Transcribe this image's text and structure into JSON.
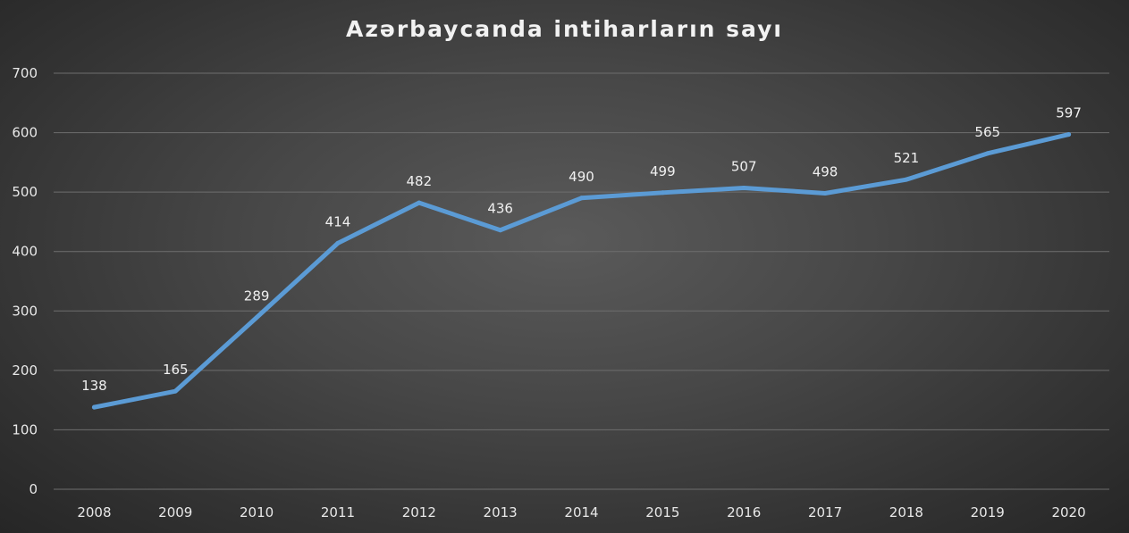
{
  "chart_data": {
    "type": "line",
    "title": "Azərbaycanda intiharların sayı",
    "xlabel": "",
    "ylabel": "",
    "x": [
      "2008",
      "2009",
      "2010",
      "2011",
      "2012",
      "2013",
      "2014",
      "2015",
      "2016",
      "2017",
      "2018",
      "2019",
      "2020"
    ],
    "series": [
      {
        "values": [
          138,
          165,
          289,
          414,
          482,
          436,
          490,
          499,
          507,
          498,
          521,
          565,
          597
        ],
        "color": "#5b9bd5"
      }
    ],
    "ylim": [
      0,
      700
    ],
    "yticks": [
      0,
      100,
      200,
      300,
      400,
      500,
      600,
      700
    ],
    "grid": true,
    "data_labels": true,
    "legend": "none"
  }
}
